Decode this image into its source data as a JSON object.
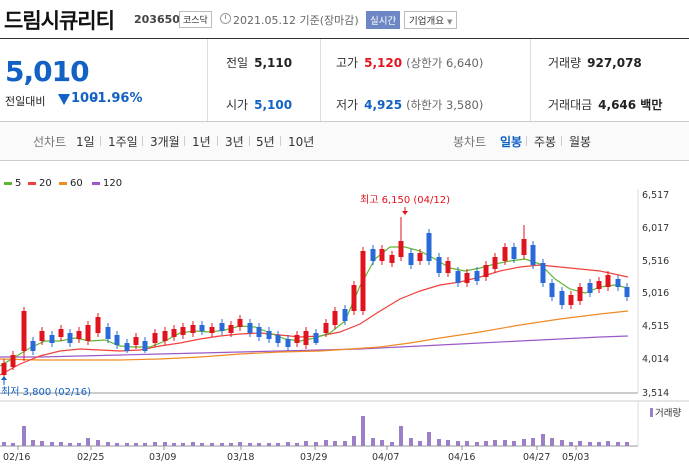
{
  "header": {
    "name": "드림시큐리티",
    "code": "203650",
    "market": "코스닥",
    "date": "2021.05.12 기준(장마감)",
    "realtime_label": "실시간",
    "company_label": "기업개요"
  },
  "price": {
    "current": "5,010",
    "change_label": "전일대비",
    "change": "100",
    "change_pct": "-1.96%"
  },
  "stats": {
    "prev_label": "전일",
    "prev": "5,110",
    "high_label": "고가",
    "high": "5,120",
    "high_sub": "(상한가 6,640)",
    "volume_label": "거래량",
    "volume": "927,078",
    "open_label": "시가",
    "open": "5,100",
    "low_label": "저가",
    "low": "4,925",
    "low_sub": "(하한가 3,580)",
    "amount_label": "거래대금",
    "amount": "4,646 백만"
  },
  "tabs": {
    "line_chart": "선차트",
    "d1": "1일",
    "w1": "1주일",
    "m3": "3개월",
    "y1": "1년",
    "y3": "3년",
    "y5": "5년",
    "y10": "10년",
    "candle_chart": "봉차트",
    "daily": "일봉",
    "weekly": "주봉",
    "monthly": "월봉"
  },
  "chart_data": {
    "type": "candlestick",
    "legend": [
      {
        "label": "5",
        "color": "#5fb832"
      },
      {
        "label": "20",
        "color": "#f0413c"
      },
      {
        "label": "60",
        "color": "#f08a24"
      },
      {
        "label": "120",
        "color": "#9b59c9"
      }
    ],
    "y_ticks": [
      "6,517",
      "6,017",
      "5,516",
      "5,016",
      "4,515",
      "4,014",
      "3,514"
    ],
    "x_ticks": [
      "02/16",
      "02/25",
      "03/09",
      "03/18",
      "03/29",
      "04/07",
      "04/16",
      "04/27",
      "05/03"
    ],
    "high_annotation": "최고 6,150 (04/12)",
    "low_annotation": "최저 3,800 (02/16)",
    "volume_label": "거래량",
    "up_color": "#e0141e",
    "down_color": "#2a6ad8"
  }
}
